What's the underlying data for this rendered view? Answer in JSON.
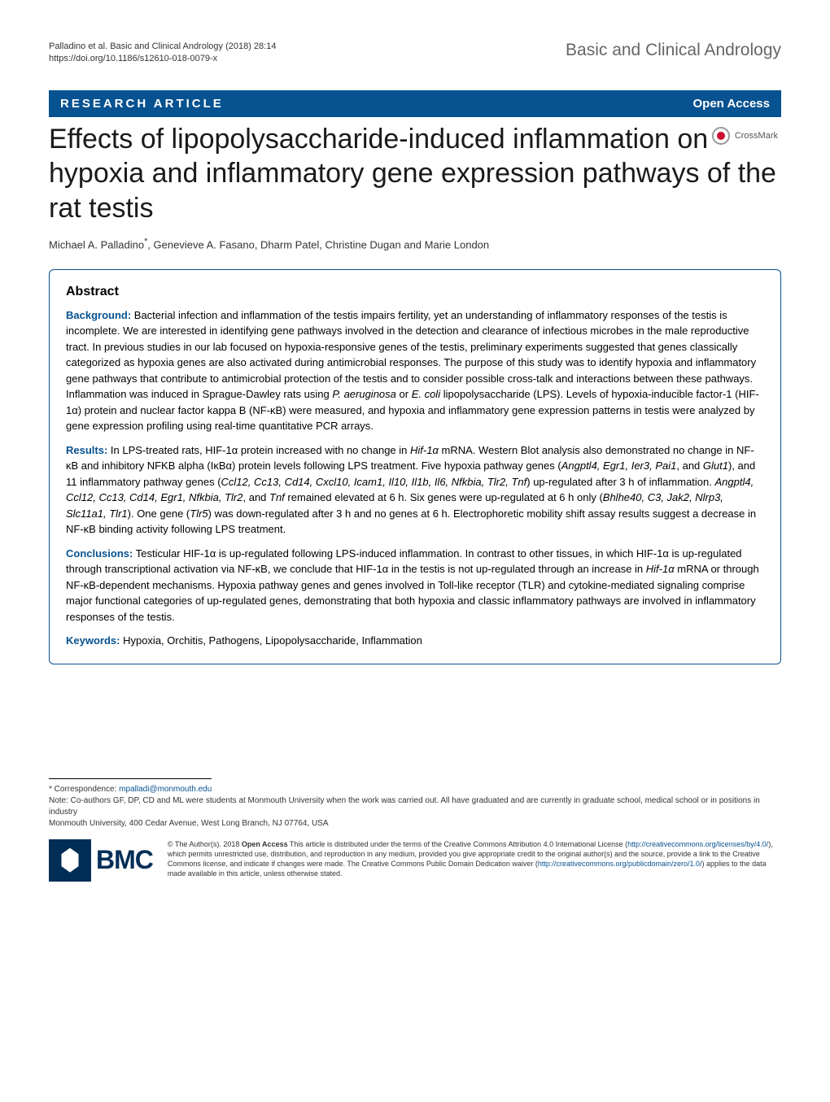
{
  "header": {
    "citation_line1": "Palladino et al. Basic and Clinical Andrology          (2018) 28:14",
    "citation_line2": "https://doi.org/10.1186/s12610-018-0079-x",
    "journal_name": "Basic and Clinical Andrology"
  },
  "bar": {
    "article_type": "RESEARCH ARTICLE",
    "open_access": "Open Access"
  },
  "crossmark": {
    "label": "CrossMark"
  },
  "title": "Effects of lipopolysaccharide-induced inflammation on hypoxia and inflammatory gene expression pathways of the rat testis",
  "authors": "Michael A. Palladino*, Genevieve A. Fasano, Dharm Patel, Christine Dugan and Marie London",
  "abstract": {
    "heading": "Abstract",
    "background_label": "Background:",
    "background_text": " Bacterial infection and inflammation of the testis impairs fertility, yet an understanding of inflammatory responses of the testis is incomplete. We are interested in identifying gene pathways involved in the detection and clearance of infectious microbes in the male reproductive tract. In previous studies in our lab focused on hypoxia-responsive genes of the testis, preliminary experiments suggested that genes classically categorized as hypoxia genes are also activated during antimicrobial responses. The purpose of this study was to identify hypoxia and inflammatory gene pathways that contribute to antimicrobial protection of the testis and to consider possible cross-talk and interactions between these pathways. Inflammation was induced in Sprague-Dawley rats using P. aeruginosa or E. coli lipopolysaccharide (LPS). Levels of hypoxia-inducible factor-1 (HIF-1α) protein and nuclear factor kappa B (NF-κB) were measured, and hypoxia and inflammatory gene expression patterns in testis were analyzed by gene expression profiling using real-time quantitative PCR arrays.",
    "results_label": "Results:",
    "results_text": " In LPS-treated rats, HIF-1α protein increased with no change in Hif-1α mRNA. Western Blot analysis also demonstrated no change in NF-κB and inhibitory NFKB alpha (IκBα) protein levels following LPS treatment. Five hypoxia pathway genes (Angptl4, Egr1, Ier3, Pai1, and Glut1), and 11 inflammatory pathway genes (Ccl12, Cc13, Cd14, Cxcl10, Icam1, Il10, Il1b, Il6, Nfkbia, Tlr2, Tnf) up-regulated after 3 h of inflammation. Angptl4, Ccl12, Cc13, Cd14, Egr1, Nfkbia, Tlr2, and Tnf remained elevated at 6 h. Six genes were up-regulated at 6 h only (Bhlhe40, C3, Jak2, Nlrp3, Slc11a1, Tlr1). One gene (Tlr5) was down-regulated after 3 h and no genes at 6 h. Electrophoretic mobility shift assay results suggest a decrease in NF-κB binding activity following LPS treatment.",
    "conclusions_label": "Conclusions:",
    "conclusions_text": " Testicular HIF-1α is up-regulated following LPS-induced inflammation. In contrast to other tissues, in which HIF-1α is up-regulated through transcriptional activation via NF-κB, we conclude that HIF-1α in the testis is not up-regulated through an increase in Hif-1α mRNA or through NF-κB-dependent mechanisms. Hypoxia pathway genes and genes involved in Toll-like receptor (TLR) and cytokine-mediated signaling comprise major functional categories of up-regulated genes, demonstrating that both hypoxia and classic inflammatory pathways are involved in inflammatory responses of the testis.",
    "keywords_label": "Keywords:",
    "keywords_text": " Hypoxia, Orchitis, Pathogens, Lipopolysaccharide, Inflammation"
  },
  "footer": {
    "corr_label": "* Correspondence: ",
    "corr_email": "mpalladi@monmouth.edu",
    "note": "Note: Co-authors GF, DP, CD and ML were students at Monmouth University when the work was carried out. All have graduated and are currently in graduate school, medical school or in positions in industry",
    "affiliation": "Monmouth University, 400 Cedar Avenue, West Long Branch, NJ 07764, USA",
    "bmc": "BMC",
    "license_pre": "© The Author(s). 2018 ",
    "license_bold": "Open Access",
    "license_1": " This article is distributed under the terms of the Creative Commons Attribution 4.0 International License (",
    "license_link1": "http://creativecommons.org/licenses/by/4.0/",
    "license_2": "), which permits unrestricted use, distribution, and reproduction in any medium, provided you give appropriate credit to the original author(s) and the source, provide a link to the Creative Commons license, and indicate if changes were made. The Creative Commons Public Domain Dedication waiver (",
    "license_link2": "http://creativecommons.org/publicdomain/zero/1.0/",
    "license_3": ") applies to the data made available in this article, unless otherwise stated."
  },
  "colors": {
    "brand_blue": "#075290",
    "bmc_navy": "#012e57",
    "crossmark_red": "#c8102e",
    "text": "#000000",
    "gray_text": "#666666"
  },
  "typography": {
    "title_fontsize": 34,
    "journal_fontsize": 21,
    "body_fontsize": 13,
    "footer_fontsize": 9
  }
}
